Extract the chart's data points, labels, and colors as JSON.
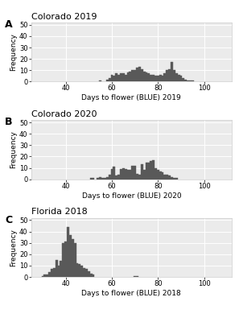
{
  "panels": [
    {
      "label": "A",
      "title": "Colorado 2019",
      "xlabel": "Days to flower (BLUE) 2019",
      "ylabel": "Frequency",
      "xlim": [
        25,
        112
      ],
      "ylim": [
        0,
        52
      ],
      "yticks": [
        0,
        10,
        20,
        30,
        40,
        50
      ],
      "xticks": [
        40,
        60,
        80,
        100
      ],
      "bar_data": {
        "55": 1,
        "58": 2,
        "59": 3,
        "60": 6,
        "61": 5,
        "62": 7,
        "63": 6,
        "64": 7,
        "65": 7,
        "66": 6,
        "67": 8,
        "68": 9,
        "69": 10,
        "70": 10,
        "71": 12,
        "72": 13,
        "73": 11,
        "74": 9,
        "75": 8,
        "76": 7,
        "77": 6,
        "78": 6,
        "79": 5,
        "80": 5,
        "81": 6,
        "82": 5,
        "83": 7,
        "84": 10,
        "85": 11,
        "86": 17,
        "87": 10,
        "88": 7,
        "89": 6,
        "90": 5,
        "91": 3,
        "92": 2,
        "93": 1,
        "94": 1,
        "95": 1
      }
    },
    {
      "label": "B",
      "title": "Colorado 2020",
      "xlabel": "Days to flower (BLUE) 2020",
      "ylabel": "Frequency",
      "xlim": [
        25,
        112
      ],
      "ylim": [
        0,
        52
      ],
      "yticks": [
        0,
        10,
        20,
        30,
        40,
        50
      ],
      "xticks": [
        40,
        60,
        80,
        100
      ],
      "bar_data": {
        "51": 1,
        "52": 1,
        "54": 1,
        "55": 2,
        "56": 1,
        "57": 1,
        "58": 2,
        "59": 4,
        "60": 9,
        "61": 11,
        "62": 3,
        "63": 4,
        "64": 9,
        "65": 10,
        "66": 9,
        "67": 8,
        "68": 8,
        "69": 12,
        "70": 12,
        "71": 5,
        "72": 4,
        "73": 13,
        "74": 8,
        "75": 15,
        "76": 15,
        "77": 16,
        "78": 17,
        "79": 10,
        "80": 8,
        "81": 7,
        "82": 6,
        "83": 4,
        "84": 4,
        "85": 3,
        "86": 2,
        "87": 1,
        "88": 1
      }
    },
    {
      "label": "C",
      "title": "Florida 2018",
      "xlabel": "Days to flower (BLUE) 2018",
      "ylabel": "Frequency",
      "xlim": [
        25,
        112
      ],
      "ylim": [
        0,
        52
      ],
      "yticks": [
        0,
        10,
        20,
        30,
        40,
        50
      ],
      "xticks": [
        40,
        60,
        80,
        100
      ],
      "bar_data": {
        "30": 1,
        "31": 2,
        "32": 2,
        "33": 4,
        "34": 7,
        "35": 8,
        "36": 15,
        "37": 10,
        "38": 14,
        "39": 30,
        "40": 31,
        "41": 44,
        "42": 37,
        "43": 33,
        "44": 30,
        "45": 12,
        "46": 11,
        "47": 10,
        "48": 8,
        "49": 7,
        "50": 5,
        "51": 3,
        "52": 2,
        "70": 1,
        "71": 1
      }
    }
  ],
  "bar_color": "#595959",
  "bar_edge_color": "#595959",
  "bar_linewidth": 0.3,
  "background_color": "#ebebeb",
  "grid_color": "#ffffff",
  "label_fontsize": 6.5,
  "title_fontsize": 8,
  "tick_fontsize": 6,
  "panel_label_fontsize": 9
}
